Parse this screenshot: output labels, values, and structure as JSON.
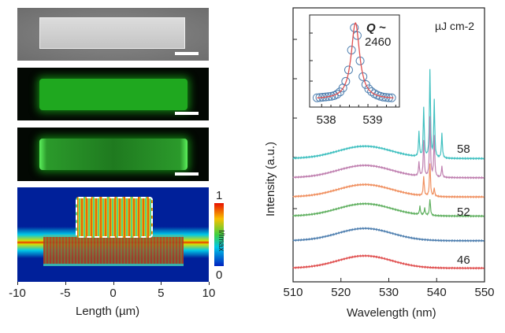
{
  "left": {
    "sim_axis": {
      "xlabel": "Length (µm)",
      "ticks": [
        "-10",
        "-5",
        "0",
        "5",
        "10"
      ],
      "colorbar_label": "I/Imax",
      "colorbar_max": "1",
      "colorbar_min": "0"
    }
  },
  "chart_data": {
    "type": "line",
    "xlabel": "Wavelength (nm)",
    "ylabel": "Intensity (a.u.)",
    "xlim": [
      510,
      550
    ],
    "xticks": [
      "510",
      "520",
      "530",
      "540",
      "550"
    ],
    "unit_label": "µJ cm-2",
    "series": [
      {
        "color": "#40c0c0",
        "offset": 4.5,
        "peaks": [
          [
            536.3,
            0.9
          ],
          [
            537.3,
            1.8
          ],
          [
            538.6,
            3.2
          ],
          [
            539.5,
            2.1
          ],
          [
            541.1,
            0.9
          ]
        ]
      },
      {
        "color": "#c080b0",
        "offset": 3.8,
        "peaks": [
          [
            536.3,
            0.5
          ],
          [
            537.3,
            1.3
          ],
          [
            538.6,
            2.2
          ],
          [
            539.5,
            1.5
          ],
          [
            541.1,
            0.4
          ]
        ]
      },
      {
        "color": "#f09060",
        "offset": 3.1,
        "peaks": [
          [
            537.3,
            0.7
          ],
          [
            538.6,
            1.2
          ],
          [
            539.5,
            0.3
          ]
        ]
      },
      {
        "color": "#60b060",
        "offset": 2.4,
        "peaks": [
          [
            536.5,
            0.3
          ],
          [
            537.5,
            0.25
          ],
          [
            538.6,
            0.6
          ]
        ]
      },
      {
        "color": "#5080b0",
        "offset": 1.5,
        "peaks": []
      },
      {
        "color": "#e05050",
        "offset": 0.5,
        "peaks": []
      }
    ],
    "curve_labels": [
      "58",
      "52",
      "46"
    ],
    "inset": {
      "xticks": [
        "538",
        "539"
      ],
      "xlim": [
        537.64,
        539.58
      ],
      "center": 538.63,
      "fwhm": 0.22,
      "annotation_q": "Q ~",
      "annotation_value": "2460",
      "point_color": "#5080b0",
      "fit_color": "#e05050"
    }
  }
}
